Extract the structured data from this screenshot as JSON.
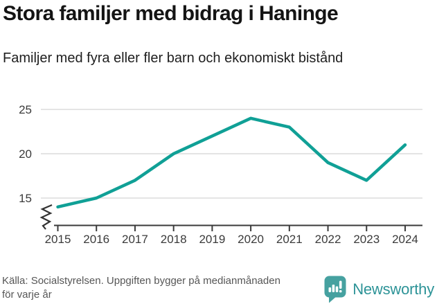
{
  "chart_data": {
    "type": "line",
    "title": "Stora familjer med bidrag i Haninge",
    "subtitle": "Familjer med fyra eller fler barn och ekonomiskt bistånd",
    "x": [
      2015,
      2016,
      2017,
      2018,
      2019,
      2020,
      2021,
      2022,
      2023,
      2024
    ],
    "series": [
      {
        "name": "Familjer med fyra eller fler barn och ekonomiskt bistånd",
        "values": [
          14,
          15,
          17,
          20,
          22,
          24,
          23,
          19,
          17,
          21
        ]
      }
    ],
    "yticks": [
      15,
      20,
      25
    ],
    "ylim": [
      13.5,
      25.7
    ],
    "axis_break_at_bottom": true,
    "grid": "horizontal-only",
    "legend": "none",
    "color": "#10A096"
  },
  "footer": {
    "source_lines": [
      "Källa: Socialstyrelsen. Uppgiften bygger på medianmånaden",
      "för varje år"
    ],
    "brand": "Newsworthy"
  },
  "colors": {
    "accent-line": "#10A096",
    "brand-text": "#2C9397",
    "brand-icon": "#46A1A0"
  }
}
